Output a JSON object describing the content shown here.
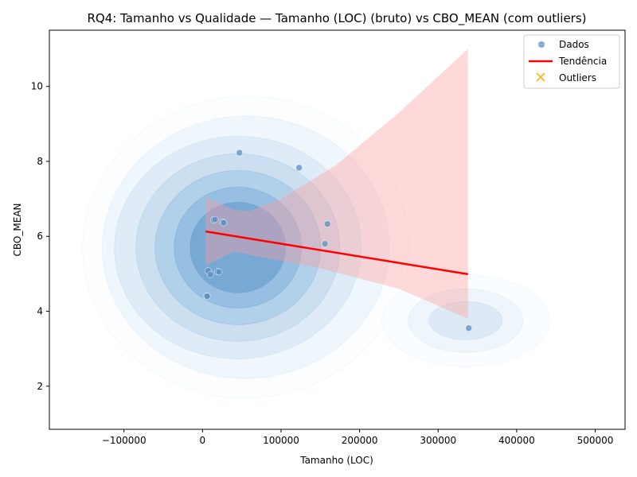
{
  "chart_data": {
    "type": "scatter",
    "title": "RQ4: Tamanho vs Qualidade — Tamanho (LOC) (bruto) vs CBO_MEAN (com outliers)",
    "xlabel": "Tamanho (LOC)",
    "ylabel": "CBO_MEAN",
    "xlim": [
      -195000,
      538000
    ],
    "ylim": [
      0.85,
      11.5
    ],
    "xticks": [
      -100000,
      0,
      100000,
      200000,
      300000,
      400000,
      500000
    ],
    "xtick_labels": [
      "−100000",
      "0",
      "100000",
      "200000",
      "300000",
      "400000",
      "500000"
    ],
    "yticks": [
      2,
      4,
      6,
      8,
      10
    ],
    "ytick_labels": [
      "2",
      "4",
      "6",
      "8",
      "10"
    ],
    "grid": false,
    "legend_position": "top-right",
    "legend": [
      {
        "label": "Dados",
        "marker": "circle",
        "color": "#5b8fc4"
      },
      {
        "label": "Tendência",
        "marker": "line",
        "color": "#ff0000"
      },
      {
        "label": "Outliers",
        "marker": "x",
        "color": "#ffa500"
      }
    ],
    "series": [
      {
        "name": "Dados",
        "color": "#5b8fc4",
        "points": [
          {
            "x": 47000,
            "y": 8.23
          },
          {
            "x": 123000,
            "y": 7.83
          },
          {
            "x": 14000,
            "y": 6.43
          },
          {
            "x": 16000,
            "y": 6.45
          },
          {
            "x": 26000,
            "y": 6.38
          },
          {
            "x": 27000,
            "y": 6.36
          },
          {
            "x": 159000,
            "y": 6.33
          },
          {
            "x": 156000,
            "y": 5.8
          },
          {
            "x": 7000,
            "y": 5.08
          },
          {
            "x": 10000,
            "y": 4.98
          },
          {
            "x": 19000,
            "y": 5.06
          },
          {
            "x": 21000,
            "y": 5.05
          },
          {
            "x": 5000,
            "y": 4.41
          },
          {
            "x": 6000,
            "y": 4.4
          },
          {
            "x": 339000,
            "y": 3.55
          }
        ]
      },
      {
        "name": "Tendência",
        "color": "#ff0000",
        "line": [
          {
            "x": 4000,
            "y": 6.13
          },
          {
            "x": 338000,
            "y": 4.99
          }
        ],
        "ci_upper": [
          {
            "x": 4000,
            "y": 7.05
          },
          {
            "x": 40000,
            "y": 6.7
          },
          {
            "x": 60000,
            "y": 6.68
          },
          {
            "x": 100000,
            "y": 7.0
          },
          {
            "x": 170000,
            "y": 7.9
          },
          {
            "x": 250000,
            "y": 9.3
          },
          {
            "x": 338000,
            "y": 11.0
          }
        ],
        "ci_lower": [
          {
            "x": 4000,
            "y": 5.22
          },
          {
            "x": 40000,
            "y": 5.6
          },
          {
            "x": 80000,
            "y": 5.42
          },
          {
            "x": 150000,
            "y": 5.15
          },
          {
            "x": 250000,
            "y": 4.6
          },
          {
            "x": 338000,
            "y": 3.8
          }
        ]
      },
      {
        "name": "Outliers",
        "color": "#ffa500",
        "points": []
      }
    ],
    "density": {
      "colors": [
        "#f7fbff",
        "#e6f0f9",
        "#d2e3f3",
        "#b9d6ec",
        "#9dc5e3",
        "#7fb1d9",
        "#6098cc",
        "#4a80bf"
      ],
      "primary": {
        "cx": 45000,
        "cy": 5.7
      },
      "secondary": {
        "cx": 335000,
        "cy": 3.75
      }
    }
  }
}
